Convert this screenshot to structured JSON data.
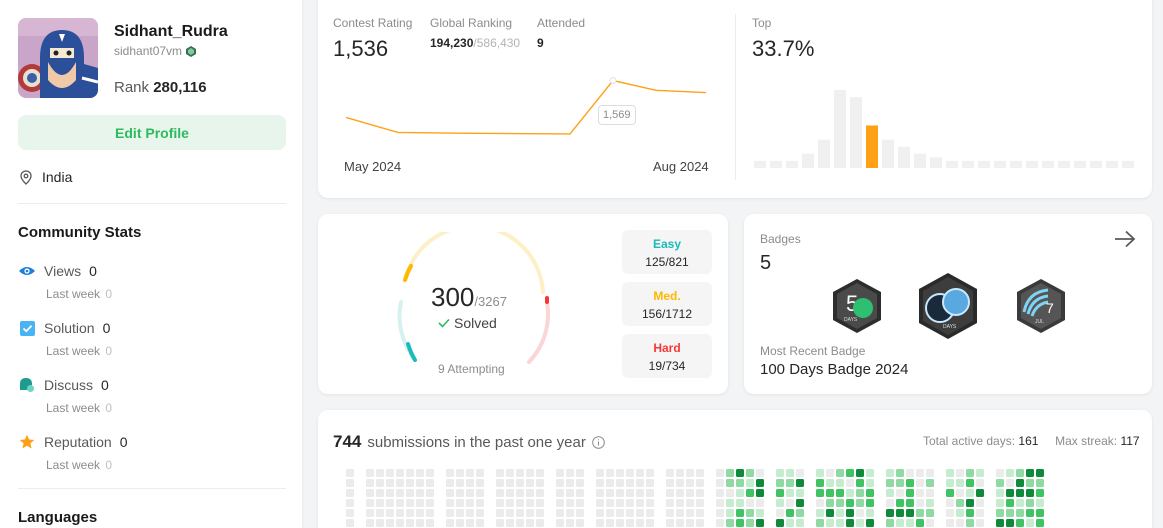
{
  "profile": {
    "username": "Sidhant_Rudra",
    "handle": "sidhant07vm",
    "rank_label": "Rank",
    "rank_value": "280,116",
    "edit_button": "Edit Profile",
    "location": "India"
  },
  "community_stats": {
    "title": "Community Stats",
    "items": [
      {
        "label": "Views",
        "value": "0",
        "sub_label": "Last week",
        "sub_value": "0"
      },
      {
        "label": "Solution",
        "value": "0",
        "sub_label": "Last week",
        "sub_value": "0"
      },
      {
        "label": "Discuss",
        "value": "0",
        "sub_label": "Last week",
        "sub_value": "0"
      },
      {
        "label": "Reputation",
        "value": "0",
        "sub_label": "Last week",
        "sub_value": "0"
      }
    ]
  },
  "languages_title": "Languages",
  "contest": {
    "rating_label": "Contest Rating",
    "rating_value": "1,536",
    "global_label": "Global Ranking",
    "global_value": "194,230",
    "global_total": "/586,430",
    "attended_label": "Attended",
    "attended_value": "9",
    "top_label": "Top",
    "top_value": "33.7%",
    "tooltip": "1,569",
    "x_start": "May 2024",
    "x_end": "Aug 2024"
  },
  "chart_data": [
    {
      "type": "line",
      "x_labels": [
        "May 2024",
        "Aug 2024"
      ],
      "values": [
        1520,
        1500,
        1499,
        1498,
        1569,
        1556,
        1553
      ],
      "highlight": {
        "index": 4,
        "label": "1,569"
      },
      "color": "#ffa116"
    },
    {
      "type": "bar",
      "values": [
        1,
        1,
        1,
        2,
        4,
        11,
        10,
        6,
        4,
        3,
        2,
        1.5,
        1,
        1,
        1,
        1,
        1,
        1,
        1,
        1,
        1,
        1,
        1,
        1
      ],
      "highlight_index": 7,
      "color": "#f0f0f0",
      "highlight_color": "#ffa116"
    }
  ],
  "problems": {
    "solved": "300",
    "total": "/3267",
    "solved_label": "Solved",
    "attempting": "9 Attempting",
    "easy": {
      "label": "Easy",
      "value": "125/821",
      "color": "#1cbaba"
    },
    "medium": {
      "label": "Med.",
      "value": "156/1712",
      "color": "#ffb700"
    },
    "hard": {
      "label": "Hard",
      "value": "19/734",
      "color": "#f63737"
    }
  },
  "badges": {
    "label": "Badges",
    "count": "5",
    "badge_text": [
      "DAYS",
      "DAYS",
      "JUL"
    ],
    "recent_label": "Most Recent Badge",
    "recent_name": "100 Days Badge 2024"
  },
  "submissions": {
    "count": "744",
    "text": "submissions in the past one year",
    "active_label": "Total active days:",
    "active_value": "161",
    "streak_label": "Max streak:",
    "streak_value": "117"
  }
}
